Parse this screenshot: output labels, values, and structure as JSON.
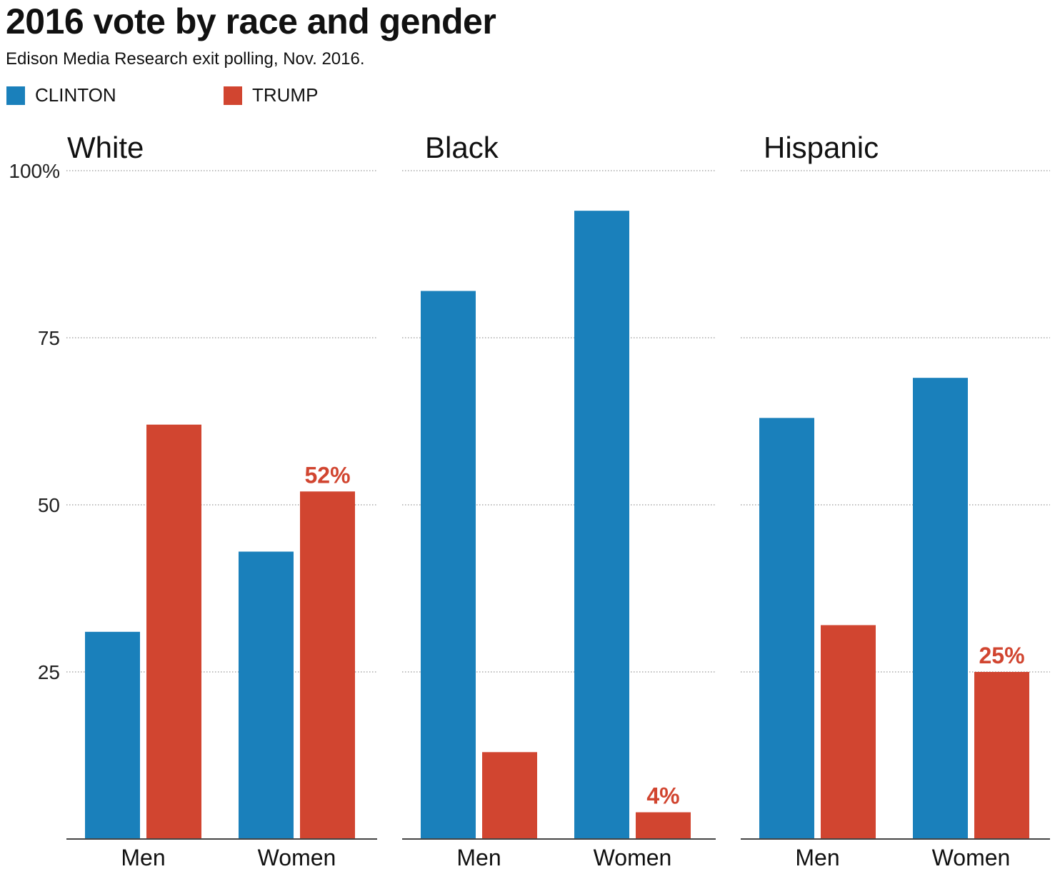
{
  "header": {
    "title": "2016 vote by race and gender",
    "subtitle": "Edison Media Research exit polling, Nov. 2016."
  },
  "legend": [
    {
      "label": "CLINTON",
      "color": "#1a80bb"
    },
    {
      "label": "TRUMP",
      "color": "#d14530"
    }
  ],
  "chart_data": {
    "type": "bar",
    "title": "2016 vote by race and gender",
    "subtitle": "Edison Media Research exit polling, Nov. 2016.",
    "ylim": [
      0,
      100
    ],
    "yticks": [
      25,
      50,
      75,
      100
    ],
    "ytick_labels": [
      "25",
      "50",
      "75",
      "100%"
    ],
    "grid": true,
    "legend_position": "top-left",
    "categories": [
      "Men",
      "Women"
    ],
    "panels": [
      {
        "name": "White",
        "series": [
          {
            "name": "CLINTON",
            "values": [
              31,
              43
            ]
          },
          {
            "name": "TRUMP",
            "values": [
              62,
              52
            ]
          }
        ],
        "annotations": [
          {
            "series": "TRUMP",
            "category": "Women",
            "text": "52%"
          }
        ]
      },
      {
        "name": "Black",
        "series": [
          {
            "name": "CLINTON",
            "values": [
              82,
              94
            ]
          },
          {
            "name": "TRUMP",
            "values": [
              13,
              4
            ]
          }
        ],
        "annotations": [
          {
            "series": "TRUMP",
            "category": "Women",
            "text": "4%"
          }
        ]
      },
      {
        "name": "Hispanic",
        "series": [
          {
            "name": "CLINTON",
            "values": [
              63,
              69
            ]
          },
          {
            "name": "TRUMP",
            "values": [
              32,
              25
            ]
          }
        ],
        "annotations": [
          {
            "series": "TRUMP",
            "category": "Women",
            "text": "25%"
          }
        ]
      }
    ],
    "colors": {
      "CLINTON": "#1a80bb",
      "TRUMP": "#d14530"
    }
  }
}
